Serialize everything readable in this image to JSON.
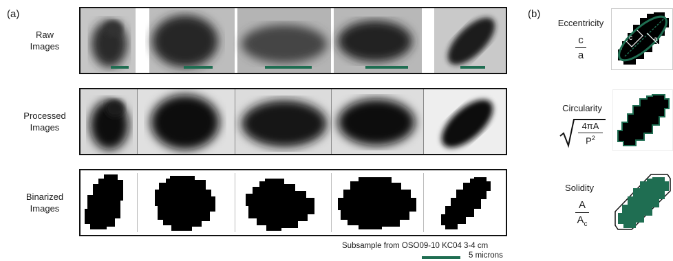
{
  "panels": {
    "a_label": "(a)",
    "b_label": "(b)"
  },
  "rows": [
    {
      "label_line1": "Raw",
      "label_line2": "Images"
    },
    {
      "label_line1": "Processed",
      "label_line2": "Images"
    },
    {
      "label_line1": "Binarized",
      "label_line2": "Images"
    }
  ],
  "metrics": {
    "eccentricity": {
      "title": "Eccentricity",
      "num": "c",
      "den": "a",
      "inset_c": "c",
      "inset_a": "a"
    },
    "circularity": {
      "title": "Circularity",
      "num": "4πA",
      "den_base": "P",
      "den_sup": "2"
    },
    "solidity": {
      "title": "Solidity",
      "num": "A",
      "den_base": "A",
      "den_sub": "c"
    }
  },
  "caption": {
    "subsample": "Subsample from OSO09-10 KC04 3-4 cm",
    "scale": "5 microns"
  },
  "colors": {
    "accent_green": "#1f6e52",
    "frame": "#111111",
    "particle": "#000000"
  }
}
